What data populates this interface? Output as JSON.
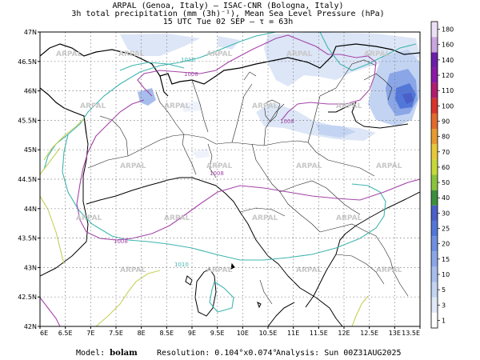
{
  "header": {
    "line1": "ARPAL (Genoa, Italy)  –  ISAC-CNR (Bologna, Italy)",
    "line2": "3h total precipitation (mm (3h)⁻¹), Mean Sea Level Pressure (hPa)",
    "line3": "15 UTC Tue 02 SEP  –  τ = 63h"
  },
  "watermark": "ARPAL",
  "lat_ticks": [
    "47N",
    "46.5N",
    "46N",
    "45.5N",
    "45N",
    "44.5N",
    "44N",
    "43.5N",
    "43N",
    "42.5N",
    "42N"
  ],
  "lon_ticks": [
    "6E",
    "6.5E",
    "7E",
    "7.5E",
    "8E",
    "8.5E",
    "9E",
    "9.5E",
    "10E",
    "10.5E",
    "11E",
    "11.5E",
    "12E",
    "12.5E",
    "13E",
    "13.5E"
  ],
  "isobar_labels": [
    "1010",
    "1008",
    "1008",
    "1008",
    "1008",
    "1010"
  ],
  "colorbar": {
    "levels": [
      "1",
      "3",
      "5",
      "10",
      "15",
      "20",
      "25",
      "30",
      "40",
      "50",
      "60",
      "70",
      "80",
      "90",
      "100",
      "110",
      "120",
      "140",
      "160",
      "180"
    ],
    "colors": [
      "#ffffff",
      "#dfe9f7",
      "#c3d4f2",
      "#a7bdec",
      "#8aa6e6",
      "#6f8fe0",
      "#5377d8",
      "#4a5fc8",
      "#3d8f3d",
      "#89c43a",
      "#c6d93a",
      "#e6c83a",
      "#e89a32",
      "#e36a2c",
      "#d8342a",
      "#b01d6e",
      "#8a1aa6",
      "#6b1fa8",
      "#c9a6e0",
      "#ece0f6"
    ]
  },
  "footer": {
    "model_label": "Model:",
    "model_value": "bolam",
    "resolution": "Resolution: 0.104°x0.074°",
    "analysis": "Analysis: Sun 00Z31AUG2025"
  }
}
